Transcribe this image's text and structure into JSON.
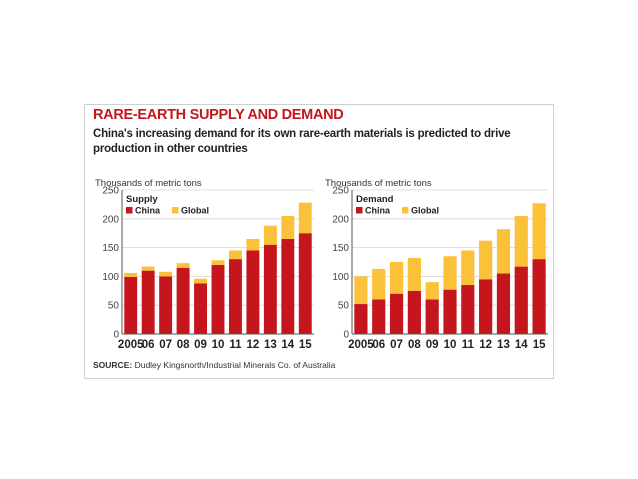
{
  "title": "RARE-EARTH SUPPLY AND DEMAND",
  "subtitle": "China's increasing demand for its own rare-earth materials is predicted to drive production in other countries",
  "source_label": "SOURCE:",
  "source_text": "Dudley Kingsnorth/Industrial Minerals Co. of Australia",
  "colors": {
    "china": "#c4161c",
    "global": "#fbc139",
    "grid": "#d6d6d6",
    "axis": "#555555"
  },
  "chart_data": [
    {
      "type": "bar",
      "stacked": true,
      "panel_title": "Supply",
      "ylabel": "Thousands of metric tons",
      "ylim": [
        0,
        250
      ],
      "yticks": [
        0,
        50,
        100,
        150,
        200,
        250
      ],
      "categories": [
        "2005",
        "06",
        "07",
        "08",
        "09",
        "10",
        "11",
        "12",
        "13",
        "14",
        "15"
      ],
      "series": [
        {
          "name": "China",
          "values": [
            99,
            110,
            100,
            115,
            88,
            120,
            130,
            145,
            155,
            165,
            175
          ]
        },
        {
          "name": "Global",
          "values": [
            7,
            7,
            8,
            8,
            8,
            8,
            15,
            20,
            33,
            40,
            53
          ]
        }
      ],
      "legend": [
        "China",
        "Global"
      ],
      "legend_position": "top-left",
      "grid": true
    },
    {
      "type": "bar",
      "stacked": true,
      "panel_title": "Demand",
      "ylabel": "Thousands of metric tons",
      "ylim": [
        0,
        250
      ],
      "yticks": [
        0,
        50,
        100,
        150,
        200,
        250
      ],
      "categories": [
        "2005",
        "06",
        "07",
        "08",
        "09",
        "10",
        "11",
        "12",
        "13",
        "14",
        "15"
      ],
      "series": [
        {
          "name": "China",
          "values": [
            52,
            60,
            70,
            75,
            60,
            77,
            85,
            95,
            105,
            117,
            130
          ]
        },
        {
          "name": "Global",
          "values": [
            48,
            53,
            55,
            57,
            30,
            58,
            60,
            67,
            77,
            88,
            97
          ]
        }
      ],
      "legend": [
        "China",
        "Global"
      ],
      "legend_position": "top-left",
      "grid": true
    }
  ]
}
